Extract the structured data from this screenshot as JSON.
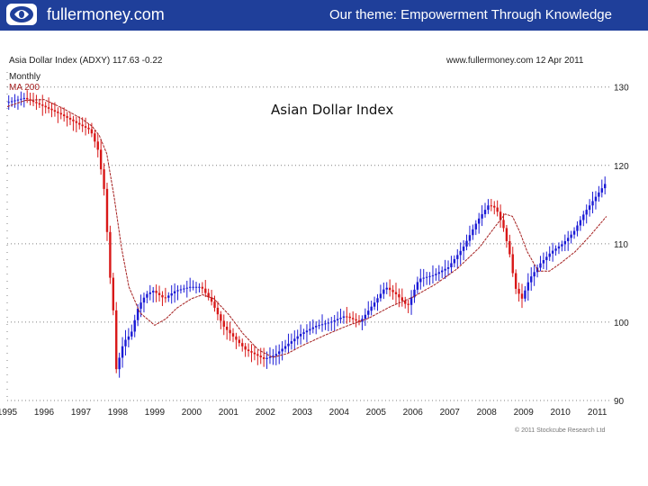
{
  "header": {
    "site": "fullermoney.com",
    "theme": "Our theme: Empowerment Through Knowledge"
  },
  "chart_meta": {
    "top_left": "Asia Dollar Index (ADXY) 117.63 -0.22",
    "top_right": "www.fullermoney.com 12 Apr 2011",
    "freq": "Monthly",
    "ma": "MA 200",
    "credit": "© 2011 Stockcube Research Ltd"
  },
  "chart_data": {
    "type": "line",
    "title": "Asian Dollar Index",
    "xlabel": "",
    "ylabel": "",
    "x_ticks": [
      "1995",
      "1996",
      "1997",
      "1998",
      "1999",
      "2000",
      "2001",
      "2002",
      "2003",
      "2004",
      "2005",
      "2006",
      "2007",
      "2008",
      "2009",
      "2010",
      "2011"
    ],
    "y_ticks": [
      90,
      100,
      110,
      120,
      130
    ],
    "ylim": [
      90,
      131
    ],
    "xlim": [
      1995.0,
      2011.35
    ],
    "series": [
      {
        "values": [
          [
            1995.0,
            128.0
          ],
          [
            1995.5,
            128.6
          ],
          [
            1996.0,
            127.6
          ],
          [
            1996.5,
            126.5
          ],
          [
            1997.0,
            125.2
          ],
          [
            1997.3,
            124.5
          ],
          [
            1997.5,
            122.0
          ],
          [
            1997.7,
            116.0
          ],
          [
            1997.8,
            107.0
          ],
          [
            1997.9,
            103.0
          ],
          [
            1998.0,
            94.0
          ],
          [
            1998.2,
            97.5
          ],
          [
            1998.4,
            98.5
          ],
          [
            1998.6,
            102.0
          ],
          [
            1998.8,
            103.5
          ],
          [
            1999.0,
            104.0
          ],
          [
            1999.3,
            103.0
          ],
          [
            1999.6,
            104.0
          ],
          [
            2000.0,
            104.5
          ],
          [
            2000.3,
            104.5
          ],
          [
            2000.6,
            102.5
          ],
          [
            2000.9,
            99.5
          ],
          [
            2001.2,
            98.0
          ],
          [
            2001.5,
            96.5
          ],
          [
            2001.8,
            95.8
          ],
          [
            2002.0,
            95.3
          ],
          [
            2002.3,
            95.8
          ],
          [
            2002.6,
            97.0
          ],
          [
            2003.0,
            98.5
          ],
          [
            2003.4,
            99.5
          ],
          [
            2003.8,
            100.0
          ],
          [
            2004.2,
            100.8
          ],
          [
            2004.6,
            100.0
          ],
          [
            2005.0,
            102.5
          ],
          [
            2005.3,
            104.5
          ],
          [
            2005.6,
            103.5
          ],
          [
            2005.9,
            102.0
          ],
          [
            2006.2,
            105.5
          ],
          [
            2006.6,
            106.0
          ],
          [
            2007.0,
            107.0
          ],
          [
            2007.4,
            109.5
          ],
          [
            2007.8,
            113.0
          ],
          [
            2008.1,
            115.0
          ],
          [
            2008.3,
            114.5
          ],
          [
            2008.5,
            112.0
          ],
          [
            2008.7,
            108.0
          ],
          [
            2008.8,
            104.5
          ],
          [
            2009.0,
            103.0
          ],
          [
            2009.2,
            105.5
          ],
          [
            2009.5,
            107.5
          ],
          [
            2009.8,
            109.0
          ],
          [
            2010.1,
            110.0
          ],
          [
            2010.4,
            111.5
          ],
          [
            2010.7,
            114.0
          ],
          [
            2011.0,
            116.0
          ],
          [
            2011.25,
            117.63
          ]
        ]
      },
      {
        "values": [
          [
            1995.0,
            127.5
          ],
          [
            1995.5,
            128.3
          ],
          [
            1996.0,
            128.4
          ],
          [
            1996.5,
            127.3
          ],
          [
            1997.0,
            126.0
          ],
          [
            1997.3,
            125.0
          ],
          [
            1997.5,
            123.8
          ],
          [
            1997.7,
            121.5
          ],
          [
            1997.9,
            116.0
          ],
          [
            1998.1,
            109.5
          ],
          [
            1998.3,
            104.5
          ],
          [
            1998.6,
            101.2
          ],
          [
            1999.0,
            99.6
          ],
          [
            1999.3,
            100.4
          ],
          [
            1999.6,
            101.8
          ],
          [
            2000.0,
            103.0
          ],
          [
            2000.3,
            103.5
          ],
          [
            2000.6,
            103.0
          ],
          [
            2001.0,
            101.0
          ],
          [
            2001.4,
            98.5
          ],
          [
            2001.8,
            96.5
          ],
          [
            2002.2,
            95.5
          ],
          [
            2002.6,
            96.0
          ],
          [
            2003.0,
            97.0
          ],
          [
            2003.6,
            98.3
          ],
          [
            2004.2,
            99.5
          ],
          [
            2004.8,
            100.5
          ],
          [
            2005.4,
            102.0
          ],
          [
            2006.0,
            103.2
          ],
          [
            2006.6,
            104.8
          ],
          [
            2007.2,
            106.8
          ],
          [
            2007.8,
            109.5
          ],
          [
            2008.2,
            112.0
          ],
          [
            2008.5,
            113.8
          ],
          [
            2008.7,
            113.5
          ],
          [
            2008.9,
            111.5
          ],
          [
            2009.1,
            109.0
          ],
          [
            2009.4,
            106.5
          ],
          [
            2009.7,
            106.5
          ],
          [
            2010.0,
            107.5
          ],
          [
            2010.4,
            109.0
          ],
          [
            2010.8,
            111.0
          ],
          [
            2011.25,
            113.5
          ]
        ]
      }
    ],
    "colors": {
      "price_up": "#1b1bd6",
      "price_down": "#d81818",
      "ma": "#a52020",
      "grid": "#808080"
    }
  }
}
